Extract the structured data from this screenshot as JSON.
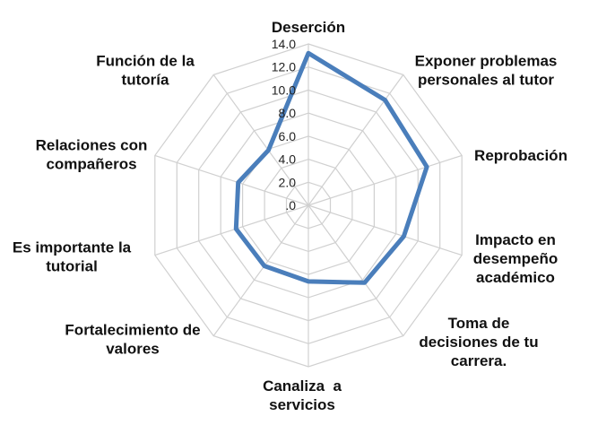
{
  "chart_data": {
    "type": "radar",
    "categories": [
      [
        "Deserción"
      ],
      [
        "Exponer problemas",
        "personales al tutor"
      ],
      [
        "Reprobación"
      ],
      [
        "Impacto en",
        "desempeño",
        "académico"
      ],
      [
        "Toma de",
        "decisiones de tu",
        "carrera."
      ],
      [
        "Canaliza  a",
        "servicios"
      ],
      [
        "Fortalecimiento de",
        "valores"
      ],
      [
        "Es importante la",
        "tutorial"
      ],
      [
        "Relaciones con",
        "compañeros"
      ],
      [
        "Función de la",
        "tutoría"
      ]
    ],
    "series": [
      {
        "values": [
          13.2,
          11.3,
          10.8,
          8.7,
          8.3,
          6.6,
          6.5,
          6.6,
          6.4,
          5.9
        ],
        "color": "#4a7ebb"
      }
    ],
    "ticks": [
      ".0",
      "2.0",
      "4.0",
      "6.0",
      "8.0",
      "10.0",
      "12.0",
      "14.0"
    ],
    "rlim": [
      0,
      14
    ],
    "grid": true,
    "legend": false
  }
}
